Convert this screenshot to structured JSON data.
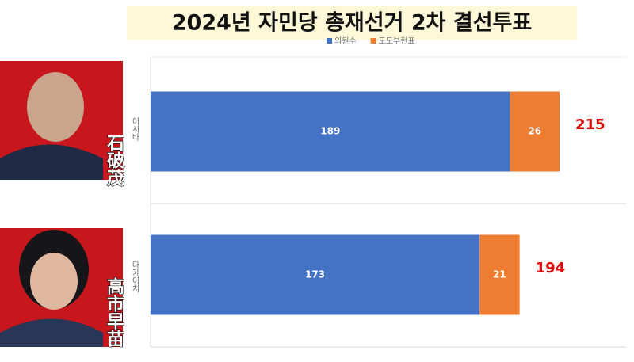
{
  "chart_data": {
    "type": "bar",
    "orientation": "horizontal",
    "stacked": true,
    "title": "2024년 자민당 총재선거 2차 결선투표",
    "categories": [
      "이시바",
      "다카이치"
    ],
    "series": [
      {
        "name": "의원수",
        "color": "#4472c4",
        "values": [
          189,
          173
        ]
      },
      {
        "name": "도도부현표",
        "color": "#ed7d31",
        "values": [
          26,
          21
        ]
      }
    ],
    "totals": [
      215,
      194
    ],
    "total_color": "#e00000",
    "xlim": [
      0,
      250
    ]
  },
  "photo_captions": [
    "石破茂",
    "高市早苗"
  ]
}
